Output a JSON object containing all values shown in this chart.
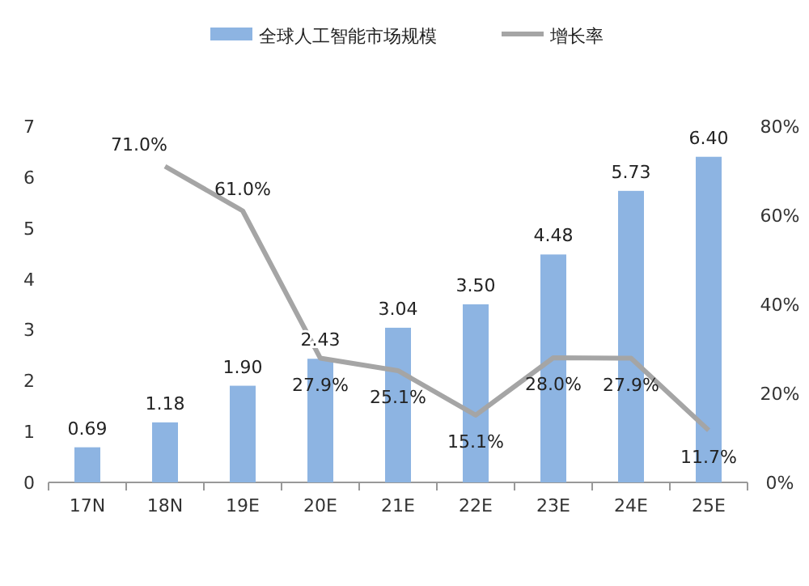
{
  "chart_data": {
    "type": "bar",
    "categories": [
      "17N",
      "18N",
      "19E",
      "20E",
      "21E",
      "22E",
      "23E",
      "24E",
      "25E"
    ],
    "series": [
      {
        "name": "全球人工智能市场规模",
        "color": "#8db4e2",
        "values": [
          0.69,
          1.18,
          1.9,
          2.43,
          3.04,
          3.5,
          4.48,
          5.73,
          6.4
        ],
        "value_labels": [
          "0.69",
          "1.18",
          "1.90",
          "2.43",
          "3.04",
          "3.50",
          "4.48",
          "5.73",
          "6.40"
        ]
      },
      {
        "name": "增长率",
        "type": "line",
        "axis": "y2",
        "color": "#a5a5a5",
        "values": [
          null,
          71.0,
          61.0,
          27.9,
          25.1,
          15.1,
          28.0,
          27.9,
          11.7
        ],
        "value_labels": [
          null,
          "71.0%",
          "61.0%",
          "27.9%",
          "25.1%",
          "15.1%",
          "28.0%",
          "27.9%",
          "11.7%"
        ]
      }
    ],
    "ylim": [
      0,
      7
    ],
    "yticks": [
      0,
      1,
      2,
      3,
      4,
      5,
      6,
      7
    ],
    "y2lim": [
      0,
      80
    ],
    "y2ticks": [
      {
        "value": 0,
        "label": "0%"
      },
      {
        "value": 20,
        "label": "20%"
      },
      {
        "value": 40,
        "label": "40%"
      },
      {
        "value": 60,
        "label": "60%"
      },
      {
        "value": 80,
        "label": "80%"
      }
    ],
    "grid": false,
    "legend": "top",
    "marker": "none",
    "line_style": "solid"
  }
}
